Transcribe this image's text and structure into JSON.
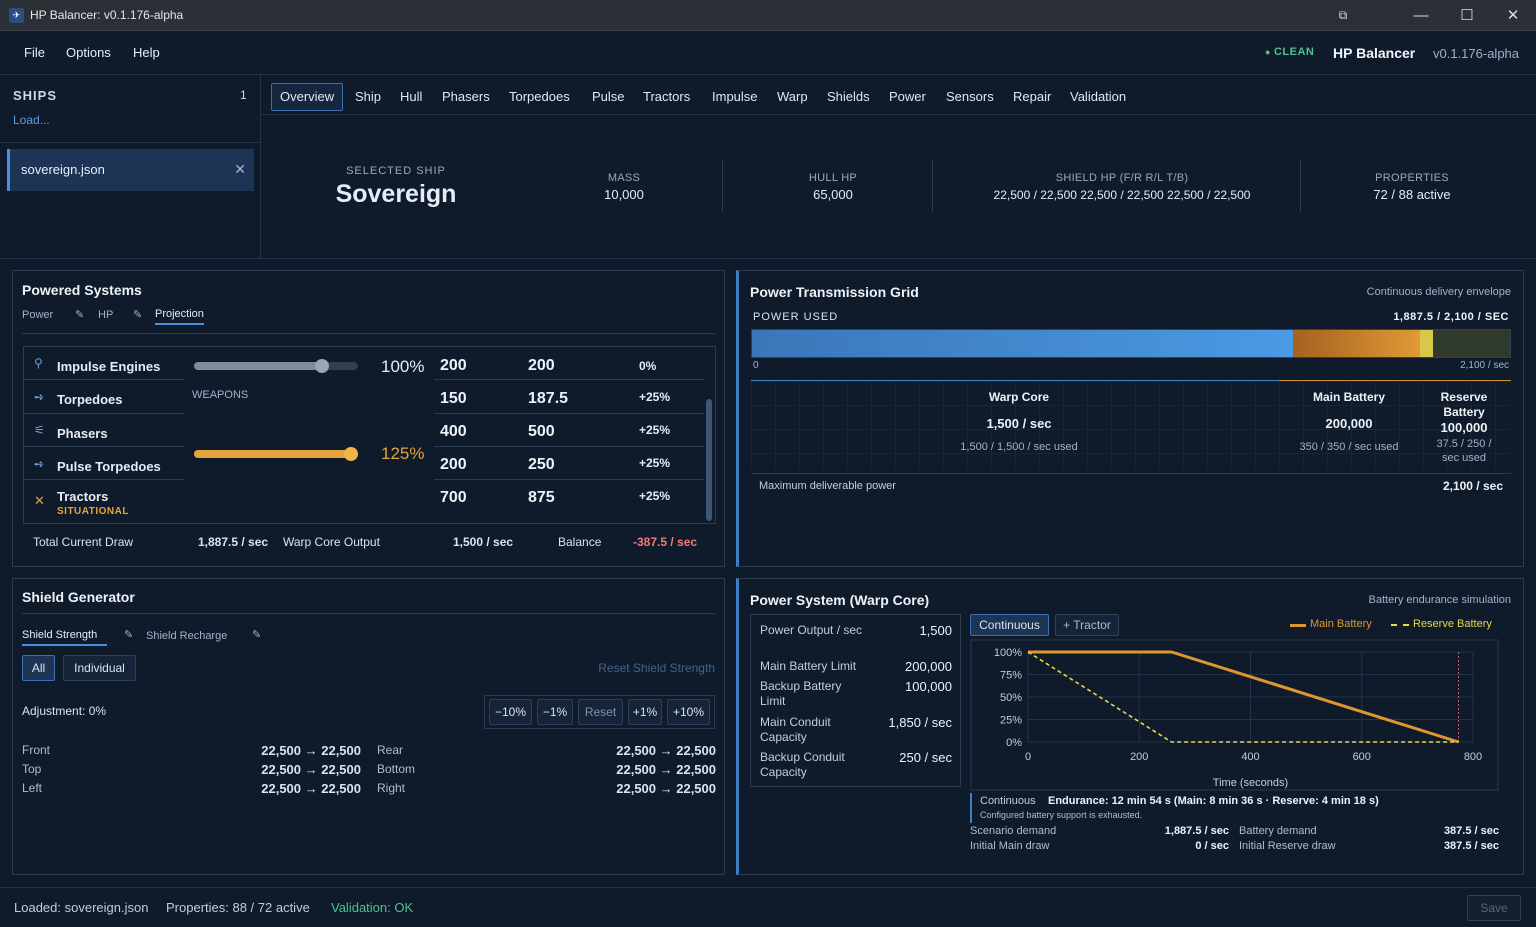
{
  "window": {
    "title": "HP Balancer: v0.1.176-alpha"
  },
  "menu": [
    "File",
    "Options",
    "Help"
  ],
  "status": {
    "clean": "CLEAN",
    "brand": "HP Balancer",
    "version": "v0.1.176-alpha"
  },
  "sidebar": {
    "title": "SHIPS",
    "count": "1",
    "load": "Load...",
    "file": "sovereign.json"
  },
  "tabs": [
    "Overview",
    "Ship",
    "Hull",
    "Phasers",
    "Torpedoes",
    "Pulse",
    "Tractors",
    "Impulse",
    "Warp",
    "Shields",
    "Power",
    "Sensors",
    "Repair",
    "Validation"
  ],
  "summary": {
    "selected_label": "SELECTED SHIP",
    "ship_name": "Sovereign",
    "mass_label": "MASS",
    "mass": "10,000",
    "hull_label": "HULL HP",
    "hull": "65,000",
    "shield_label": "SHIELD HP (F/R R/L T/B)",
    "shield": "22,500 / 22,500 22,500 / 22,500 22,500 / 22,500",
    "props_label": "PROPERTIES",
    "props": "72 / 88 active"
  },
  "powered": {
    "title": "Powered Systems",
    "subtabs": [
      "Power",
      "HP",
      "Projection"
    ],
    "weapons_label": "WEAPONS",
    "impulse_pct": "100%",
    "weapons_pct": "125%",
    "impulse_slider": 0.78,
    "weapons_slider": 0.96,
    "rows": [
      {
        "name": "Impulse Engines",
        "base": "200",
        "proj": "200",
        "delta": "0%"
      },
      {
        "name": "Torpedoes",
        "base": "150",
        "proj": "187.5",
        "delta": "+25%"
      },
      {
        "name": "Phasers",
        "base": "400",
        "proj": "500",
        "delta": "+25%"
      },
      {
        "name": "Pulse Torpedoes",
        "base": "200",
        "proj": "250",
        "delta": "+25%"
      },
      {
        "name": "Tractors",
        "tag": "SITUATIONAL",
        "base": "700",
        "proj": "875",
        "delta": "+25%"
      }
    ],
    "total_label": "Total Current Draw",
    "total": "1,887.5 / sec",
    "core_label": "Warp Core Output",
    "core": "1,500 / sec",
    "balance_label": "Balance",
    "balance": "-387.5 / sec"
  },
  "grid": {
    "title": "Power Transmission Grid",
    "subtitle": "Continuous delivery envelope",
    "used_label": "POWER USED",
    "used": "1,887.5 / 2,100 / SEC",
    "axis_min": "0",
    "axis_max": "2,100 / sec",
    "core_share": 1500,
    "main_share": 350,
    "reserve_share": 37.5,
    "capacity": 2100,
    "core_name": "Warp Core",
    "core_val": "1,500 / sec",
    "core_used": "1,500 / 1,500 / sec used",
    "main_name": "Main Battery",
    "main_val": "200,000",
    "main_used": "350 / 350 / sec used",
    "reserve_name": "Reserve Battery",
    "reserve_val": "100,000",
    "reserve_used": "37.5 / 250 / sec used",
    "max_label": "Maximum deliverable power",
    "max": "2,100 / sec",
    "colors": {
      "core": "#4a92d9",
      "main": "#d5892a",
      "reserve": "#e0d24a",
      "empty": "#333b2e"
    }
  },
  "shield": {
    "title": "Shield Generator",
    "subtabs": [
      "Shield Strength",
      "Shield Recharge"
    ],
    "modes": [
      "All",
      "Individual"
    ],
    "reset_link": "Reset Shield Strength",
    "adjust": "Adjustment: 0%",
    "steps": [
      "−10%",
      "−1%",
      "Reset",
      "+1%",
      "+10%"
    ],
    "facings": [
      {
        "name": "Front",
        "val": "22,500 → 22,500"
      },
      {
        "name": "Rear",
        "val": "22,500 → 22,500"
      },
      {
        "name": "Top",
        "val": "22,500 → 22,500"
      },
      {
        "name": "Bottom",
        "val": "22,500 → 22,500"
      },
      {
        "name": "Left",
        "val": "22,500 → 22,500"
      },
      {
        "name": "Right",
        "val": "22,500 → 22,500"
      }
    ]
  },
  "powersys": {
    "title": "Power System (Warp Core)",
    "subtitle": "Battery endurance simulation",
    "specs": [
      {
        "label": "Power Output / sec",
        "val": "1,500"
      },
      {
        "label": "Main Battery Limit",
        "val": "200,000"
      },
      {
        "label": "Backup Battery Limit",
        "val": "100,000"
      },
      {
        "label": "Main Conduit Capacity",
        "val": "1,850 / sec"
      },
      {
        "label": "Backup Conduit Capacity",
        "val": "250 / sec"
      }
    ],
    "mode_buttons": [
      "Continuous",
      "+ Tractor"
    ],
    "legend": [
      "Main Battery",
      "Reserve Battery"
    ],
    "endurance_mode": "Continuous",
    "endurance": "Endurance: 12 min 54 s (Main: 8 min 36 s · Reserve: 4 min 18 s)",
    "endurance_note": "Configured battery support is exhausted.",
    "stats": [
      {
        "label": "Scenario demand",
        "val": "1,887.5 / sec"
      },
      {
        "label": "Battery demand",
        "val": "387.5 / sec"
      },
      {
        "label": "Initial Main draw",
        "val": "0 / sec"
      },
      {
        "label": "Initial Reserve draw",
        "val": "387.5 / sec"
      }
    ]
  },
  "chart_data": {
    "type": "line",
    "xlabel": "Time (seconds)",
    "xlim": [
      0,
      800
    ],
    "ylim": [
      0,
      100
    ],
    "xticks": [
      "0",
      "200",
      "600",
      "800"
    ],
    "xtick_vals": [
      0,
      200,
      600,
      800
    ],
    "yticks": [
      "100%",
      "75%",
      "50%",
      "25%",
      "0%"
    ],
    "ytick_vals": [
      100,
      75,
      50,
      25,
      0
    ],
    "extra_xtick": {
      "label": "400",
      "val": 400
    },
    "series": [
      {
        "name": "Main Battery",
        "style": "solid",
        "color": "#e0962f",
        "points": [
          [
            0,
            100
          ],
          [
            258,
            100
          ],
          [
            774,
            0
          ]
        ]
      },
      {
        "name": "Reserve Battery",
        "style": "dashed",
        "color": "#e6d84a",
        "points": [
          [
            0,
            100
          ],
          [
            258,
            0
          ],
          [
            774,
            0
          ]
        ]
      }
    ],
    "marker_x": 774,
    "legend_position": "top-right"
  },
  "footer": {
    "loaded": "Loaded: sovereign.json",
    "props": "Properties: 88 / 72 active",
    "validation": "Validation: OK",
    "save": "Save"
  }
}
